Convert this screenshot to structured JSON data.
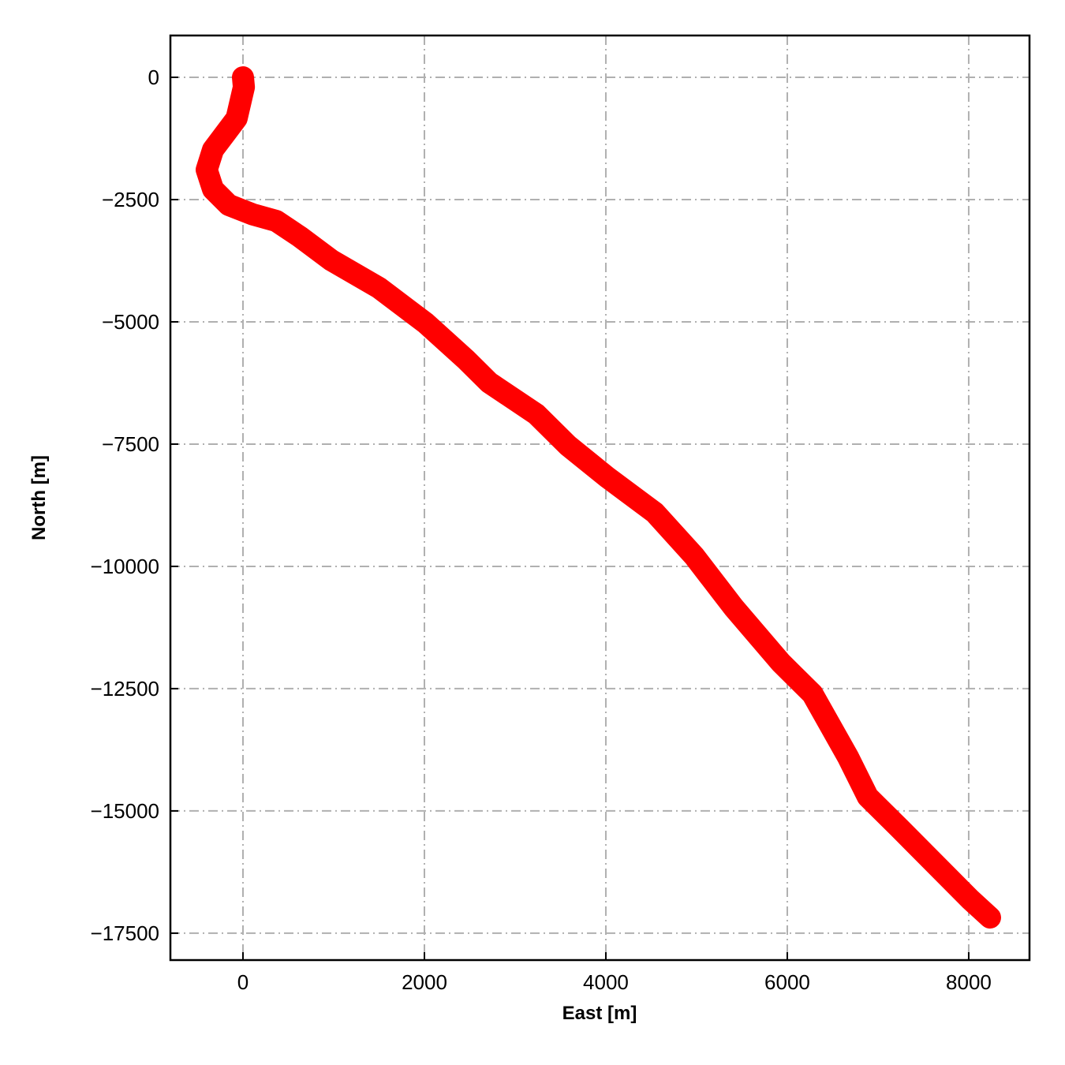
{
  "chart_data": {
    "type": "line",
    "x_label": "East [m]",
    "y_label": "North [m]",
    "series": [
      {
        "color": "#ff0000",
        "x": [
          0,
          10,
          -70,
          -200,
          -330,
          -400,
          -330,
          -157,
          104,
          365,
          626,
          974,
          1496,
          2017,
          2452,
          2713,
          3235,
          3583,
          4017,
          4539,
          4974,
          5409,
          5930,
          6278,
          6670,
          6887,
          7235,
          7583,
          8017,
          8235
        ],
        "values": [
          0,
          -200,
          -840,
          -1160,
          -1480,
          -1890,
          -2290,
          -2610,
          -2800,
          -2935,
          -3258,
          -3740,
          -4300,
          -5030,
          -5760,
          -6240,
          -6890,
          -7530,
          -8180,
          -8900,
          -9790,
          -10840,
          -11970,
          -12610,
          -13900,
          -14710,
          -15350,
          -16000,
          -16810,
          -17180
        ]
      }
    ],
    "xlim": [
      -800,
      8670
    ],
    "ylim": [
      -18050,
      855
    ],
    "xticks": [
      0,
      2000,
      4000,
      6000,
      8000
    ],
    "yticks": [
      0,
      {
        "value": -2500,
        "label": "−2500"
      },
      {
        "value": -5000,
        "label": "−5000"
      },
      {
        "value": -7500,
        "label": "−7500"
      },
      {
        "value": -10000,
        "label": "−10000"
      },
      {
        "value": -12500,
        "label": "−12500"
      },
      {
        "value": -15000,
        "label": "−15000"
      },
      {
        "value": -17500,
        "label": "−17500"
      }
    ],
    "grid": true
  }
}
